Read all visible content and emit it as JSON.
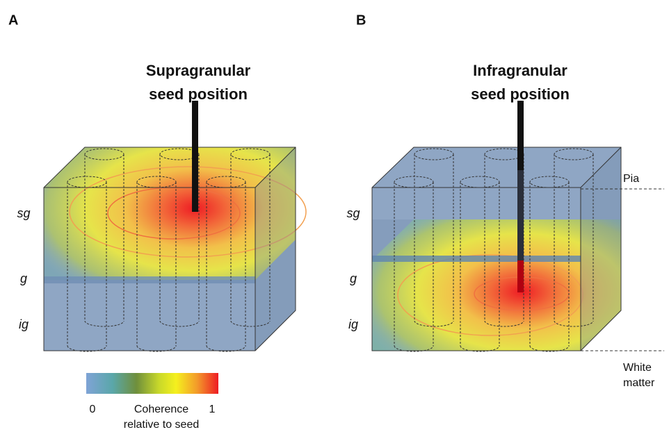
{
  "panels": [
    {
      "letter": "A",
      "title": [
        "Supragranular",
        "seed position"
      ]
    },
    {
      "letter": "B",
      "title": [
        "Infragranular",
        "seed position"
      ]
    }
  ],
  "layers": [
    "sg",
    "g",
    "ig"
  ],
  "pia": "Pia",
  "white_matter": [
    "White",
    "matter"
  ],
  "colorbar": {
    "min": "0",
    "max": "1",
    "label": [
      "Coherence",
      "relative to seed"
    ]
  }
}
